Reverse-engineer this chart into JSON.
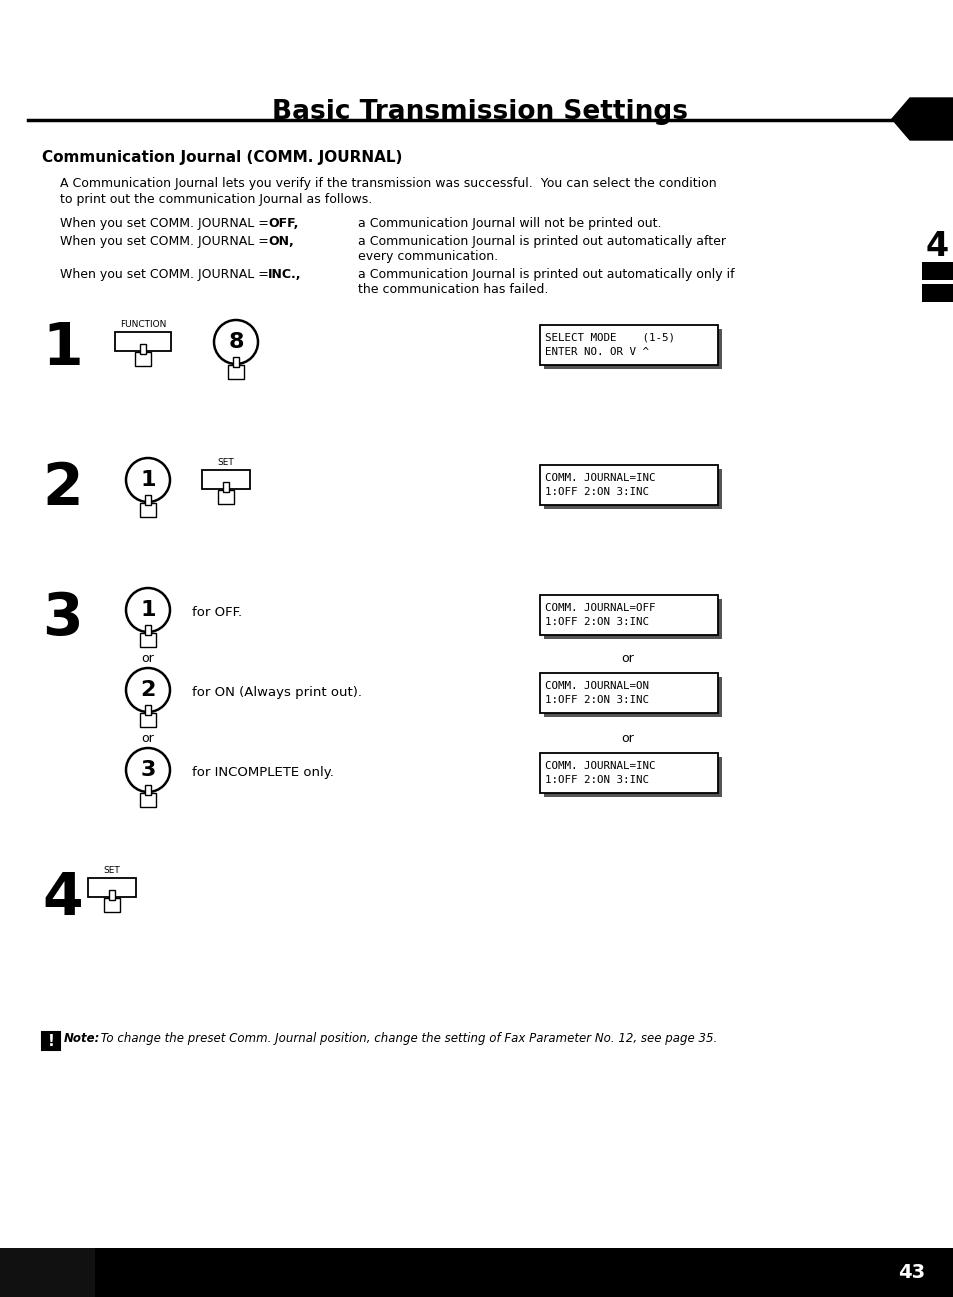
{
  "title": "Basic Transmission Settings",
  "section_title": "Communication Journal (COMM. JOURNAL)",
  "intro_line1": "A Communication Journal lets you verify if the transmission was successful.  You can select the condition",
  "intro_line2": "to print out the communication Journal as follows.",
  "cond1_left": "When you set COMM. JOURNAL = ",
  "cond1_bold": "OFF,",
  "cond1_right": "a Communication Journal will not be printed out.",
  "cond2_left": "When you set COMM. JOURNAL = ",
  "cond2_bold": "ON,",
  "cond2_right1": "a Communication Journal is printed out automatically after",
  "cond2_right2": "every communication.",
  "cond3_left": "When you set COMM. JOURNAL = ",
  "cond3_bold": "INC.,",
  "cond3_right1": "a Communication Journal is printed out automatically only if",
  "cond3_right2": "the communication has failed.",
  "step1_display1": "SELECT MODE    (1-5)",
  "step1_display2": "ENTER NO. OR V ^",
  "step2_display1": "COMM. JOURNAL=INC",
  "step2_display2": "1:OFF 2:ON 3:INC",
  "step3a_display1": "COMM. JOURNAL=OFF",
  "step3a_display2": "1:OFF 2:ON 3:INC",
  "step3a_text": "for OFF.",
  "step3b_display1": "COMM. JOURNAL=ON",
  "step3b_display2": "1:OFF 2:ON 3:INC",
  "step3b_text": "for ON (Always print out).",
  "step3c_display1": "COMM. JOURNAL=INC",
  "step3c_display2": "1:OFF 2:ON 3:INC",
  "step3c_text": "for INCOMPLETE only.",
  "note_label": "Note:",
  "note_body": " To change the preset Comm. Journal position, change the setting of Fax Parameter No. 12, see page 35.",
  "page_number": "43",
  "chapter_num": "4",
  "bg_color": "#ffffff"
}
